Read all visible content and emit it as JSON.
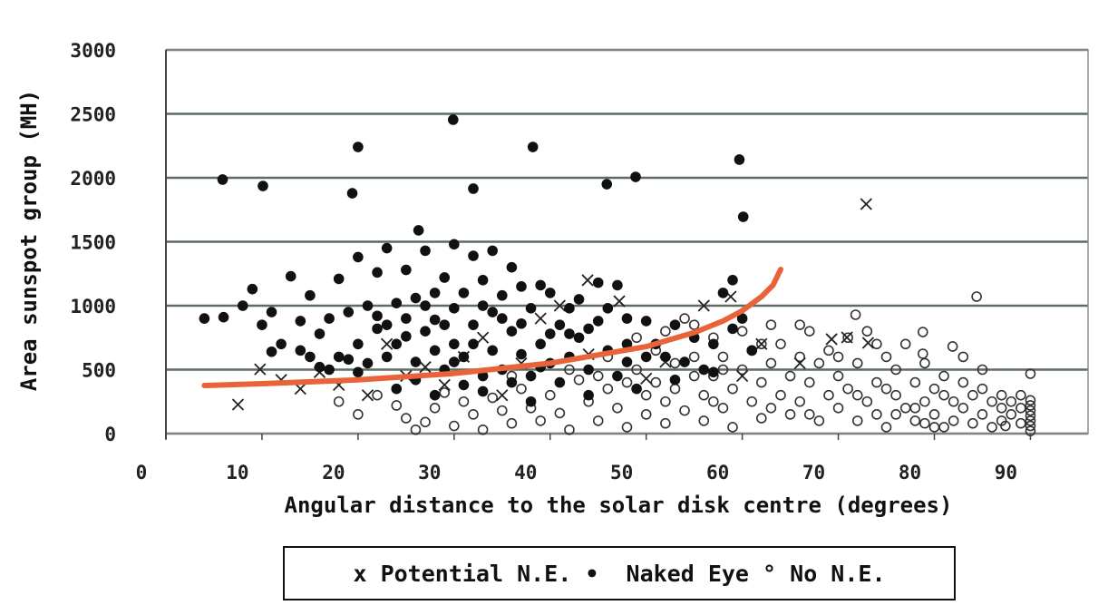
{
  "chart_data": {
    "type": "scatter",
    "xlabel": "Angular distance to the solar disk centre (degrees)",
    "ylabel": "Area sunspot group (MH)",
    "xlim": [
      0,
      96
    ],
    "ylim": [
      0,
      3000
    ],
    "xticks": [
      0,
      10,
      20,
      30,
      40,
      50,
      60,
      70,
      80,
      90
    ],
    "yticks": [
      0,
      500,
      1000,
      1500,
      2000,
      2500,
      3000
    ],
    "grid": "horizontal",
    "legend_position": "bottom",
    "legend": {
      "potential": "x Potential N.E.",
      "naked": "•  Naked Eye",
      "none": "° No N.E."
    },
    "colors": {
      "trend": "#e8633a",
      "grid": "#5d6b62",
      "marker": "#111111"
    },
    "series": [
      {
        "name": "Naked Eye",
        "marker": "filled-circle",
        "points": [
          [
            5.9,
            1986
          ],
          [
            10.1,
            1936
          ],
          [
            20,
            2241
          ],
          [
            19.4,
            1879
          ],
          [
            29.9,
            2454
          ],
          [
            32,
            1915
          ],
          [
            38.2,
            2241
          ],
          [
            45.9,
            1950
          ],
          [
            48.9,
            2007
          ],
          [
            59.7,
            2142
          ],
          [
            60.1,
            1695
          ],
          [
            26.3,
            1589
          ],
          [
            4,
            900
          ],
          [
            6,
            910
          ],
          [
            8,
            1000
          ],
          [
            9,
            1130
          ],
          [
            10,
            850
          ],
          [
            11,
            950
          ],
          [
            11,
            640
          ],
          [
            12,
            700
          ],
          [
            13,
            1230
          ],
          [
            14,
            880
          ],
          [
            15,
            600
          ],
          [
            15,
            1080
          ],
          [
            16,
            520
          ],
          [
            16,
            780
          ],
          [
            17,
            900
          ],
          [
            18,
            1210
          ],
          [
            18,
            600
          ],
          [
            19,
            950
          ],
          [
            20,
            700
          ],
          [
            20,
            1380
          ],
          [
            21,
            1000
          ],
          [
            21,
            550
          ],
          [
            22,
            1260
          ],
          [
            22,
            820
          ],
          [
            23,
            1450
          ],
          [
            23,
            600
          ],
          [
            24,
            1020
          ],
          [
            24,
            700
          ],
          [
            25,
            1280
          ],
          [
            25,
            900
          ],
          [
            26,
            560
          ],
          [
            26,
            1060
          ],
          [
            27,
            1430
          ],
          [
            27,
            800
          ],
          [
            28,
            650
          ],
          [
            28,
            1100
          ],
          [
            29,
            1220
          ],
          [
            29,
            500
          ],
          [
            30,
            1480
          ],
          [
            30,
            980
          ],
          [
            30,
            700
          ],
          [
            31,
            1100
          ],
          [
            31,
            600
          ],
          [
            32,
            1390
          ],
          [
            32,
            850
          ],
          [
            33,
            1200
          ],
          [
            33,
            450
          ],
          [
            34,
            1430
          ],
          [
            34,
            950
          ],
          [
            34,
            650
          ],
          [
            35,
            1080
          ],
          [
            35,
            500
          ],
          [
            36,
            1300
          ],
          [
            36,
            800
          ],
          [
            37,
            1150
          ],
          [
            37,
            620
          ],
          [
            38,
            980
          ],
          [
            38,
            450
          ],
          [
            39,
            1160
          ],
          [
            39,
            700
          ],
          [
            40,
            1100
          ],
          [
            40,
            550
          ],
          [
            41,
            850
          ],
          [
            41,
            400
          ],
          [
            42,
            980
          ],
          [
            42,
            600
          ],
          [
            43,
            1050
          ],
          [
            43,
            750
          ],
          [
            44,
            500
          ],
          [
            45,
            1180
          ],
          [
            45,
            880
          ],
          [
            46,
            650
          ],
          [
            47,
            1160
          ],
          [
            47,
            450
          ],
          [
            48,
            900
          ],
          [
            48,
            560
          ],
          [
            50,
            880
          ],
          [
            51,
            700
          ],
          [
            52,
            600
          ],
          [
            53,
            850
          ],
          [
            55,
            750
          ],
          [
            57,
            700
          ],
          [
            58,
            1100
          ],
          [
            59,
            1200
          ],
          [
            60,
            900
          ],
          [
            61,
            650
          ],
          [
            24,
            350
          ],
          [
            28,
            300
          ],
          [
            33,
            330
          ],
          [
            38,
            250
          ],
          [
            44,
            300
          ],
          [
            49,
            350
          ],
          [
            53,
            420
          ],
          [
            56,
            500
          ],
          [
            20,
            480
          ],
          [
            17,
            500
          ],
          [
            26,
            420
          ],
          [
            31,
            380
          ],
          [
            36,
            400
          ],
          [
            22,
            920
          ],
          [
            27,
            1000
          ],
          [
            29,
            850
          ],
          [
            32,
            700
          ],
          [
            35,
            900
          ],
          [
            39,
            520
          ],
          [
            42,
            780
          ],
          [
            46,
            980
          ],
          [
            50,
            600
          ],
          [
            14,
            650
          ],
          [
            19,
            580
          ],
          [
            23,
            850
          ],
          [
            25,
            760
          ],
          [
            28,
            890
          ],
          [
            30,
            560
          ],
          [
            33,
            1000
          ],
          [
            37,
            860
          ],
          [
            40,
            780
          ],
          [
            44,
            820
          ],
          [
            48,
            700
          ],
          [
            54,
            560
          ],
          [
            57,
            480
          ],
          [
            59,
            820
          ]
        ]
      },
      {
        "name": "No N.E.",
        "marker": "open-circle",
        "points": [
          [
            84.4,
            1071
          ],
          [
            78.8,
            794
          ],
          [
            78.8,
            624
          ],
          [
            81.9,
            681
          ],
          [
            71.8,
            929
          ],
          [
            90,
            468
          ],
          [
            18,
            250
          ],
          [
            20,
            150
          ],
          [
            22,
            300
          ],
          [
            24,
            220
          ],
          [
            25,
            120
          ],
          [
            26,
            30
          ],
          [
            27,
            90
          ],
          [
            28,
            200
          ],
          [
            29,
            320
          ],
          [
            30,
            60
          ],
          [
            31,
            250
          ],
          [
            32,
            150
          ],
          [
            33,
            30
          ],
          [
            34,
            280
          ],
          [
            35,
            180
          ],
          [
            36,
            80
          ],
          [
            37,
            350
          ],
          [
            38,
            200
          ],
          [
            39,
            100
          ],
          [
            40,
            300
          ],
          [
            41,
            160
          ],
          [
            42,
            30
          ],
          [
            43,
            420
          ],
          [
            44,
            250
          ],
          [
            45,
            100
          ],
          [
            46,
            350
          ],
          [
            47,
            200
          ],
          [
            48,
            50
          ],
          [
            49,
            500
          ],
          [
            50,
            300
          ],
          [
            50,
            150
          ],
          [
            51,
            650
          ],
          [
            51,
            400
          ],
          [
            52,
            250
          ],
          [
            52,
            80
          ],
          [
            53,
            550
          ],
          [
            53,
            350
          ],
          [
            54,
            180
          ],
          [
            54,
            900
          ],
          [
            55,
            450
          ],
          [
            55,
            600
          ],
          [
            56,
            300
          ],
          [
            56,
            100
          ],
          [
            57,
            750
          ],
          [
            57,
            450
          ],
          [
            58,
            200
          ],
          [
            58,
            600
          ],
          [
            59,
            350
          ],
          [
            59,
            50
          ],
          [
            60,
            800
          ],
          [
            60,
            500
          ],
          [
            61,
            250
          ],
          [
            61,
            650
          ],
          [
            62,
            400
          ],
          [
            62,
            120
          ],
          [
            63,
            850
          ],
          [
            63,
            550
          ],
          [
            64,
            300
          ],
          [
            64,
            700
          ],
          [
            65,
            450
          ],
          [
            65,
            150
          ],
          [
            66,
            600
          ],
          [
            66,
            250
          ],
          [
            67,
            800
          ],
          [
            67,
            400
          ],
          [
            68,
            100
          ],
          [
            68,
            550
          ],
          [
            69,
            300
          ],
          [
            69,
            650
          ],
          [
            70,
            200
          ],
          [
            70,
            450
          ],
          [
            71,
            750
          ],
          [
            71,
            350
          ],
          [
            72,
            100
          ],
          [
            72,
            550
          ],
          [
            73,
            250
          ],
          [
            73,
            800
          ],
          [
            74,
            400
          ],
          [
            74,
            150
          ],
          [
            75,
            600
          ],
          [
            75,
            50
          ],
          [
            76,
            300
          ],
          [
            76,
            500
          ],
          [
            77,
            200
          ],
          [
            77,
            700
          ],
          [
            78,
            100
          ],
          [
            78,
            400
          ],
          [
            79,
            250
          ],
          [
            79,
            550
          ],
          [
            80,
            150
          ],
          [
            80,
            350
          ],
          [
            81,
            50
          ],
          [
            81,
            450
          ],
          [
            82,
            250
          ],
          [
            82,
            100
          ],
          [
            83,
            400
          ],
          [
            83,
            200
          ],
          [
            84,
            300
          ],
          [
            84,
            80
          ],
          [
            85,
            150
          ],
          [
            85,
            350
          ],
          [
            86,
            250
          ],
          [
            86,
            50
          ],
          [
            87,
            300
          ],
          [
            87,
            200
          ],
          [
            87,
            100
          ],
          [
            87.4,
            60
          ],
          [
            88,
            250
          ],
          [
            88,
            150
          ],
          [
            89,
            80
          ],
          [
            89,
            200
          ],
          [
            89,
            300
          ],
          [
            90,
            20
          ],
          [
            90,
            60
          ],
          [
            90,
            100
          ],
          [
            90,
            140
          ],
          [
            90,
            180
          ],
          [
            90,
            220
          ],
          [
            90,
            260
          ],
          [
            46,
            600
          ],
          [
            49,
            750
          ],
          [
            52,
            800
          ],
          [
            55,
            850
          ],
          [
            58,
            500
          ],
          [
            62,
            700
          ],
          [
            66,
            850
          ],
          [
            70,
            600
          ],
          [
            74,
            700
          ],
          [
            76,
            150
          ],
          [
            79,
            80
          ],
          [
            81,
            300
          ],
          [
            83,
            600
          ],
          [
            85,
            500
          ],
          [
            57,
            250
          ],
          [
            63,
            200
          ],
          [
            67,
            150
          ],
          [
            72,
            300
          ],
          [
            75,
            350
          ],
          [
            78,
            200
          ],
          [
            80,
            50
          ],
          [
            42,
            500
          ],
          [
            45,
            450
          ],
          [
            48,
            400
          ],
          [
            36,
            450
          ]
        ]
      },
      {
        "name": "Potential N.E.",
        "marker": "cross",
        "points": [
          [
            7.5,
            227
          ],
          [
            9.8,
            503
          ],
          [
            12,
            420
          ],
          [
            14,
            350
          ],
          [
            16,
            480
          ],
          [
            18,
            380
          ],
          [
            21,
            300
          ],
          [
            23,
            700
          ],
          [
            25,
            450
          ],
          [
            27,
            520
          ],
          [
            29,
            380
          ],
          [
            31,
            600
          ],
          [
            33,
            750
          ],
          [
            35,
            300
          ],
          [
            37,
            550
          ],
          [
            39,
            900
          ],
          [
            41,
            1000
          ],
          [
            43.9,
            1199
          ],
          [
            47.2,
            1035
          ],
          [
            44,
            620
          ],
          [
            50,
            430
          ],
          [
            52,
            560
          ],
          [
            56,
            1000
          ],
          [
            58.8,
            1071
          ],
          [
            62,
            700
          ],
          [
            66,
            550
          ],
          [
            69.3,
            738
          ],
          [
            70.9,
            752
          ],
          [
            72.9,
            1794
          ],
          [
            73.1,
            709
          ],
          [
            60,
            450
          ]
        ]
      }
    ],
    "trend_line": [
      [
        4,
        376
      ],
      [
        10,
        390
      ],
      [
        20,
        420
      ],
      [
        30,
        470
      ],
      [
        40,
        550
      ],
      [
        50,
        680
      ],
      [
        55,
        790
      ],
      [
        58,
        880
      ],
      [
        60,
        960
      ],
      [
        62,
        1070
      ],
      [
        63.2,
        1160
      ],
      [
        64,
        1284
      ]
    ]
  }
}
